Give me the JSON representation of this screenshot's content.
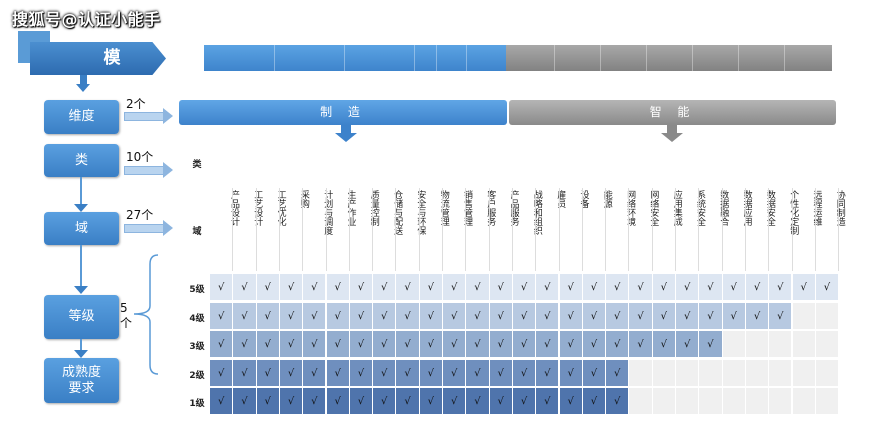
{
  "watermark": "搜狐号@认证小能手",
  "title": "模",
  "top_sections": [
    {
      "label": "制  造",
      "color": "#4a8fd6"
    },
    {
      "label": "智  能",
      "color": "#999999"
    }
  ],
  "side_steps": [
    {
      "label": "维度",
      "count": "2个"
    },
    {
      "label": "类",
      "count": "10个"
    },
    {
      "label": "域",
      "count": "27个"
    },
    {
      "label": "等级",
      "count": "5个"
    },
    {
      "label": "成熟度要求",
      "count": ""
    }
  ],
  "table": {
    "category_header": "类",
    "domain_header": "域",
    "domains": [
      "产品设计",
      "工艺设计",
      "工艺优化",
      "采购",
      "计划与调度",
      "生产作业",
      "质量控制",
      "仓储与配送",
      "安全与环保",
      "物流管理",
      "销售管理",
      "客户服务",
      "产品服务",
      "战略和组织",
      "雇员",
      "设备",
      "能源",
      "网络环境",
      "网络安全",
      "应用集成",
      "系统安全",
      "数据融合",
      "数据应用",
      "数据安全",
      "个性化定制",
      "远程运维",
      "协同制造"
    ],
    "levels": [
      {
        "label": "5级",
        "checked": 27,
        "color": "#dde6f2"
      },
      {
        "label": "4级",
        "checked": 25,
        "color": "#b7c9e1"
      },
      {
        "label": "3级",
        "checked": 22,
        "color": "#93adcf"
      },
      {
        "label": "2级",
        "checked": 18,
        "color": "#6f8fbe"
      },
      {
        "label": "1级",
        "checked": 18,
        "color": "#4f74ac"
      }
    ],
    "check_mark": "√",
    "empty_color": "#f0f0f0"
  }
}
